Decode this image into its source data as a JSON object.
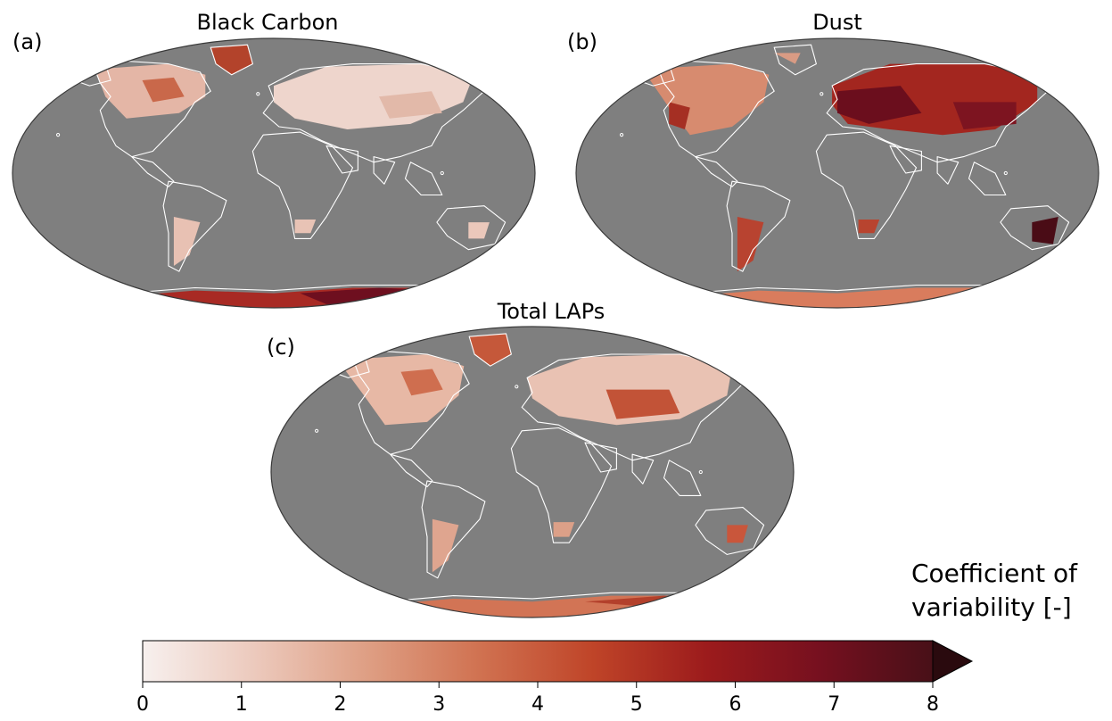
{
  "panels": [
    {
      "id": "a",
      "letter": "(a)",
      "title": "Black Carbon"
    },
    {
      "id": "b",
      "letter": "(b)",
      "title": "Dust"
    },
    {
      "id": "c",
      "letter": "(c)",
      "title": "Total LAPs"
    }
  ],
  "colorbar": {
    "title_line1": "Coefficient of",
    "title_line2": "variability [-]",
    "min": 0,
    "max": 8,
    "ticks": [
      "0",
      "1",
      "2",
      "3",
      "4",
      "5",
      "6",
      "7",
      "8"
    ],
    "extend": "max",
    "colors": [
      "#f7f0ee",
      "#ecc9bc",
      "#de9e83",
      "#d07150",
      "#bf4428",
      "#9c1b1c",
      "#76101f",
      "#481018",
      "#2a0a0e"
    ]
  },
  "style": {
    "ocean_color": "#7f7f7f",
    "coast_color": "#ffffff",
    "outline_color": "#3a3a3a"
  }
}
